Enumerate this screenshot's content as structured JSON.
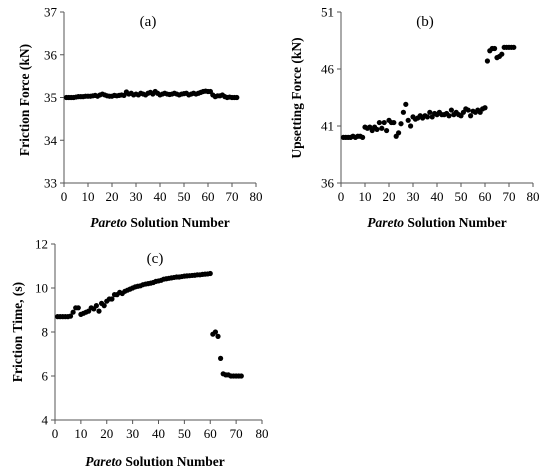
{
  "chart_data": [
    {
      "type": "scatter",
      "panel_label": "(a)",
      "xlabel_italic": "Pareto",
      "xlabel_rest": " Solution Number",
      "ylabel": "Friction Force (kN)",
      "xlim": [
        0,
        80
      ],
      "ylim": [
        33,
        37
      ],
      "xticks": [
        0,
        10,
        20,
        30,
        40,
        50,
        60,
        70,
        80
      ],
      "yticks": [
        33,
        34,
        35,
        36,
        37
      ],
      "grid": false,
      "marker_color": "#000000",
      "points": [
        [
          1,
          35.0
        ],
        [
          2,
          35.0
        ],
        [
          3,
          35.0
        ],
        [
          4,
          35.0
        ],
        [
          5,
          35.01
        ],
        [
          6,
          35.02
        ],
        [
          7,
          35.02
        ],
        [
          8,
          35.02
        ],
        [
          9,
          35.03
        ],
        [
          10,
          35.03
        ],
        [
          11,
          35.03
        ],
        [
          12,
          35.04
        ],
        [
          13,
          35.05
        ],
        [
          14,
          35.03
        ],
        [
          15,
          35.06
        ],
        [
          16,
          35.08
        ],
        [
          17,
          35.06
        ],
        [
          18,
          35.04
        ],
        [
          19,
          35.03
        ],
        [
          20,
          35.03
        ],
        [
          21,
          35.05
        ],
        [
          22,
          35.04
        ],
        [
          23,
          35.05
        ],
        [
          24,
          35.06
        ],
        [
          25,
          35.05
        ],
        [
          26,
          35.13
        ],
        [
          27,
          35.08
        ],
        [
          28,
          35.1
        ],
        [
          29,
          35.06
        ],
        [
          30,
          35.08
        ],
        [
          31,
          35.06
        ],
        [
          32,
          35.1
        ],
        [
          33,
          35.08
        ],
        [
          34,
          35.06
        ],
        [
          35,
          35.1
        ],
        [
          36,
          35.12
        ],
        [
          37,
          35.08
        ],
        [
          38,
          35.14
        ],
        [
          39,
          35.1
        ],
        [
          40,
          35.06
        ],
        [
          41,
          35.08
        ],
        [
          42,
          35.1
        ],
        [
          43,
          35.08
        ],
        [
          44,
          35.07
        ],
        [
          45,
          35.08
        ],
        [
          46,
          35.1
        ],
        [
          47,
          35.08
        ],
        [
          48,
          35.06
        ],
        [
          49,
          35.08
        ],
        [
          50,
          35.09
        ],
        [
          51,
          35.1
        ],
        [
          52,
          35.06
        ],
        [
          53,
          35.08
        ],
        [
          54,
          35.1
        ],
        [
          55,
          35.08
        ],
        [
          56,
          35.1
        ],
        [
          57,
          35.12
        ],
        [
          58,
          35.14
        ],
        [
          59,
          35.15
        ],
        [
          60,
          35.14
        ],
        [
          61,
          35.14
        ],
        [
          62,
          35.06
        ],
        [
          63,
          35.02
        ],
        [
          64,
          35.04
        ],
        [
          65,
          35.04
        ],
        [
          66,
          35.06
        ],
        [
          67,
          35.02
        ],
        [
          68,
          35.0
        ],
        [
          69,
          35.01
        ],
        [
          70,
          35.0
        ],
        [
          71,
          35.0
        ],
        [
          72,
          35.0
        ]
      ]
    },
    {
      "type": "scatter",
      "panel_label": "(b)",
      "xlabel_italic": "Pareto",
      "xlabel_rest": " Solution Number",
      "ylabel": "Upsetting Force (kN)",
      "xlim": [
        0,
        80
      ],
      "ylim": [
        36,
        51
      ],
      "xticks": [
        0,
        10,
        20,
        30,
        40,
        50,
        60,
        70,
        80
      ],
      "yticks": [
        36,
        41,
        46,
        51
      ],
      "grid": false,
      "marker_color": "#000000",
      "points": [
        [
          1,
          40.0
        ],
        [
          2,
          40.0
        ],
        [
          3,
          40.0
        ],
        [
          4,
          40.0
        ],
        [
          5,
          40.1
        ],
        [
          6,
          40.0
        ],
        [
          7,
          40.1
        ],
        [
          8,
          40.1
        ],
        [
          9,
          40.0
        ],
        [
          10,
          40.9
        ],
        [
          11,
          40.8
        ],
        [
          12,
          40.9
        ],
        [
          13,
          40.6
        ],
        [
          14,
          40.9
        ],
        [
          15,
          40.7
        ],
        [
          16,
          41.3
        ],
        [
          17,
          40.8
        ],
        [
          18,
          41.3
        ],
        [
          19,
          40.6
        ],
        [
          20,
          41.5
        ],
        [
          21,
          41.3
        ],
        [
          22,
          41.3
        ],
        [
          23,
          40.1
        ],
        [
          24,
          40.4
        ],
        [
          25,
          41.2
        ],
        [
          26,
          42.2
        ],
        [
          27,
          42.9
        ],
        [
          28,
          41.5
        ],
        [
          29,
          41.0
        ],
        [
          30,
          41.8
        ],
        [
          31,
          41.6
        ],
        [
          32,
          41.7
        ],
        [
          33,
          41.9
        ],
        [
          34,
          41.7
        ],
        [
          35,
          41.9
        ],
        [
          36,
          41.8
        ],
        [
          37,
          42.2
        ],
        [
          38,
          41.8
        ],
        [
          39,
          42.1
        ],
        [
          40,
          42.0
        ],
        [
          41,
          42.2
        ],
        [
          42,
          42.0
        ],
        [
          43,
          42.0
        ],
        [
          44,
          42.1
        ],
        [
          45,
          41.9
        ],
        [
          46,
          42.4
        ],
        [
          47,
          42.0
        ],
        [
          48,
          42.2
        ],
        [
          49,
          42.0
        ],
        [
          50,
          41.9
        ],
        [
          51,
          42.2
        ],
        [
          52,
          42.5
        ],
        [
          53,
          42.4
        ],
        [
          54,
          41.9
        ],
        [
          55,
          42.3
        ],
        [
          56,
          42.2
        ],
        [
          57,
          42.4
        ],
        [
          58,
          42.2
        ],
        [
          59,
          42.5
        ],
        [
          60,
          42.6
        ],
        [
          61,
          46.7
        ],
        [
          62,
          47.6
        ],
        [
          63,
          47.8
        ],
        [
          64,
          47.8
        ],
        [
          65,
          47.0
        ],
        [
          66,
          47.1
        ],
        [
          67,
          47.3
        ],
        [
          68,
          47.9
        ],
        [
          69,
          47.9
        ],
        [
          70,
          47.9
        ],
        [
          71,
          47.9
        ],
        [
          72,
          47.9
        ]
      ]
    },
    {
      "type": "scatter",
      "panel_label": "(c)",
      "xlabel_italic": "Pareto",
      "xlabel_rest": " Solution Number",
      "ylabel": "Friction Time, (s)",
      "xlim": [
        0,
        80
      ],
      "ylim": [
        4,
        12
      ],
      "xticks": [
        0,
        10,
        20,
        30,
        40,
        50,
        60,
        70,
        80
      ],
      "yticks": [
        4,
        6,
        8,
        10,
        12
      ],
      "grid": false,
      "marker_color": "#000000",
      "points": [
        [
          1,
          8.7
        ],
        [
          2,
          8.7
        ],
        [
          3,
          8.7
        ],
        [
          4,
          8.7
        ],
        [
          5,
          8.7
        ],
        [
          6,
          8.72
        ],
        [
          7,
          8.9
        ],
        [
          8,
          9.1
        ],
        [
          9,
          9.1
        ],
        [
          10,
          8.8
        ],
        [
          11,
          8.85
        ],
        [
          12,
          8.9
        ],
        [
          13,
          8.95
        ],
        [
          14,
          9.1
        ],
        [
          15,
          9.05
        ],
        [
          16,
          9.2
        ],
        [
          17,
          8.95
        ],
        [
          18,
          9.3
        ],
        [
          19,
          9.2
        ],
        [
          20,
          9.4
        ],
        [
          21,
          9.5
        ],
        [
          22,
          9.5
        ],
        [
          23,
          9.7
        ],
        [
          24,
          9.7
        ],
        [
          25,
          9.8
        ],
        [
          26,
          9.75
        ],
        [
          27,
          9.85
        ],
        [
          28,
          9.9
        ],
        [
          29,
          9.95
        ],
        [
          30,
          10.0
        ],
        [
          31,
          10.05
        ],
        [
          32,
          10.08
        ],
        [
          33,
          10.1
        ],
        [
          34,
          10.15
        ],
        [
          35,
          10.18
        ],
        [
          36,
          10.2
        ],
        [
          37,
          10.22
        ],
        [
          38,
          10.25
        ],
        [
          39,
          10.3
        ],
        [
          40,
          10.32
        ],
        [
          41,
          10.35
        ],
        [
          42,
          10.4
        ],
        [
          43,
          10.42
        ],
        [
          44,
          10.44
        ],
        [
          45,
          10.46
        ],
        [
          46,
          10.48
        ],
        [
          47,
          10.5
        ],
        [
          48,
          10.5
        ],
        [
          49,
          10.52
        ],
        [
          50,
          10.54
        ],
        [
          51,
          10.55
        ],
        [
          52,
          10.56
        ],
        [
          53,
          10.57
        ],
        [
          54,
          10.58
        ],
        [
          55,
          10.6
        ],
        [
          56,
          10.6
        ],
        [
          57,
          10.62
        ],
        [
          58,
          10.63
        ],
        [
          59,
          10.64
        ],
        [
          60,
          10.66
        ],
        [
          61,
          7.9
        ],
        [
          62,
          8.0
        ],
        [
          63,
          7.8
        ],
        [
          64,
          6.8
        ],
        [
          65,
          6.1
        ],
        [
          66,
          6.05
        ],
        [
          67,
          6.05
        ],
        [
          68,
          6.0
        ],
        [
          69,
          6.0
        ],
        [
          70,
          6.0
        ],
        [
          71,
          6.0
        ],
        [
          72,
          6.0
        ]
      ]
    }
  ]
}
